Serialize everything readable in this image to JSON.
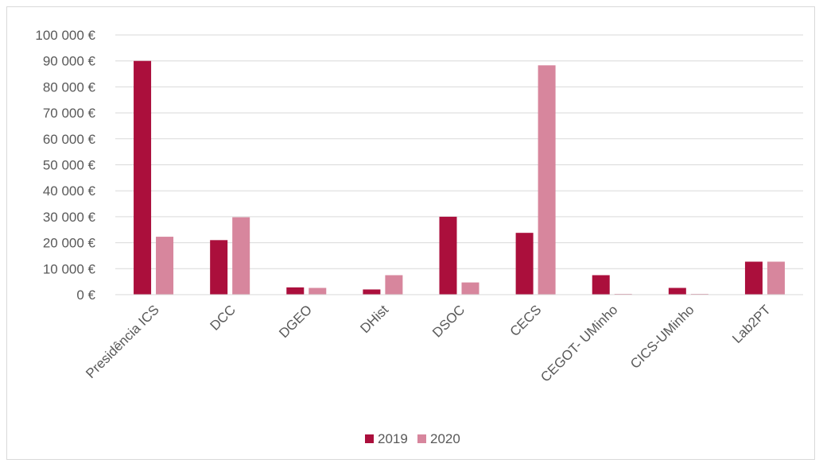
{
  "chart_data": {
    "type": "bar",
    "categories": [
      "Presidência ICS",
      "DCC",
      "DGEO",
      "DHist",
      "DSOC",
      "CECS",
      "CEGOT- UMinho",
      "CICS-UMinho",
      "Lab2PT"
    ],
    "series": [
      {
        "name": "2019",
        "color": "#ab0f3c",
        "values": [
          90000,
          21000,
          2800,
          2000,
          30000,
          23800,
          7500,
          2600,
          12700
        ]
      },
      {
        "name": "2020",
        "color": "#d7869d",
        "values": [
          22300,
          29800,
          2600,
          7500,
          4700,
          88300,
          300,
          300,
          12700
        ]
      }
    ],
    "title": "",
    "xlabel": "",
    "ylabel": "",
    "ylim": [
      0,
      100000
    ],
    "ytick_values": [
      0,
      10000,
      20000,
      30000,
      40000,
      50000,
      60000,
      70000,
      80000,
      90000,
      100000
    ],
    "ytick_labels": [
      "0 €",
      "10 000 €",
      "20 000 €",
      "30 000 €",
      "40 000 €",
      "50 000 €",
      "60 000 €",
      "70 000 €",
      "80 000 €",
      "90 000 €",
      "100 000 €"
    ],
    "grid": true,
    "legend_position": "bottom"
  }
}
